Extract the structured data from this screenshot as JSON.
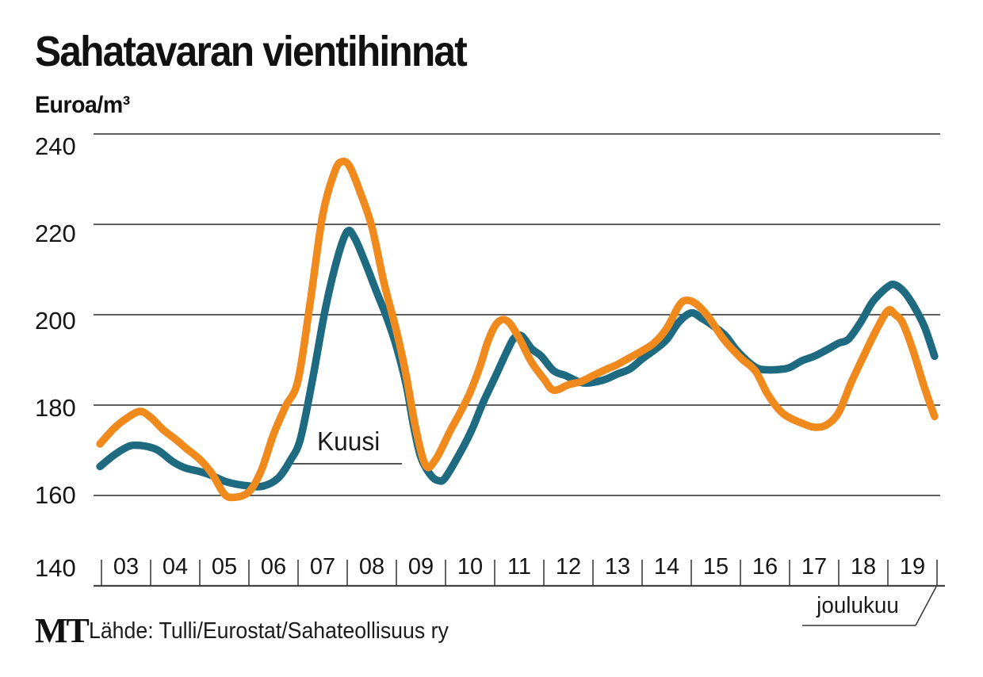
{
  "title": "Sahatavaran vientihinnat",
  "y_axis_unit": "Euroa/m³",
  "annotations": {
    "kuusi_label": "Kuusi",
    "x_axis_note": "joulukuu"
  },
  "footer": {
    "logo": "MT",
    "source": "Lähde: Tulli/Eurostat/Sahateollisuus ry"
  },
  "colors": {
    "kuusi_line": "#1E6A80",
    "orange_line": "#F08A1D",
    "grid": "#2a2a2a",
    "axis": "#444444",
    "text": "#111111"
  },
  "chart_data": {
    "type": "line",
    "title": "Sahatavaran vientihinnat",
    "ylabel": "Euroa/m³",
    "ylim": [
      140,
      240
    ],
    "yticks": [
      240,
      220,
      200,
      180,
      160,
      140
    ],
    "xtick_labels": [
      "03",
      "04",
      "05",
      "06",
      "07",
      "08",
      "09",
      "10",
      "11",
      "12",
      "13",
      "14",
      "15",
      "16",
      "17",
      "18",
      "19"
    ],
    "x_range_years": [
      2003,
      2020
    ],
    "x_end_note": "joulukuu",
    "grid": "horizontal",
    "legend_position": "inline-annotation",
    "series": [
      {
        "name": "Kuusi",
        "color": "#1E6A80",
        "points": [
          [
            2002.97,
            166.4
          ],
          [
            2003.25,
            168.9
          ],
          [
            2003.5,
            170.6
          ],
          [
            2003.65,
            171.1
          ],
          [
            2003.9,
            170.9
          ],
          [
            2004.15,
            170.0
          ],
          [
            2004.45,
            167.5
          ],
          [
            2004.7,
            166.1
          ],
          [
            2005.0,
            165.3
          ],
          [
            2005.25,
            164.4
          ],
          [
            2005.55,
            163.0
          ],
          [
            2006.0,
            162.1
          ],
          [
            2006.3,
            162.1
          ],
          [
            2006.6,
            163.9
          ],
          [
            2006.85,
            167.9
          ],
          [
            2007.05,
            172.6
          ],
          [
            2007.3,
            186.0
          ],
          [
            2007.55,
            201.0
          ],
          [
            2007.8,
            212.5
          ],
          [
            2008.0,
            218.4
          ],
          [
            2008.15,
            217.0
          ],
          [
            2008.35,
            212.0
          ],
          [
            2008.6,
            205.0
          ],
          [
            2008.8,
            199.5
          ],
          [
            2009.0,
            193.0
          ],
          [
            2009.2,
            184.5
          ],
          [
            2009.35,
            175.4
          ],
          [
            2009.5,
            168.4
          ],
          [
            2009.7,
            164.5
          ],
          [
            2009.85,
            163.3
          ],
          [
            2010.0,
            164.0
          ],
          [
            2010.35,
            170.5
          ],
          [
            2010.55,
            174.9
          ],
          [
            2010.75,
            180.2
          ],
          [
            2011.0,
            186.0
          ],
          [
            2011.25,
            191.9
          ],
          [
            2011.4,
            194.9
          ],
          [
            2011.55,
            195.3
          ],
          [
            2011.75,
            192.5
          ],
          [
            2011.95,
            190.8
          ],
          [
            2012.2,
            187.6
          ],
          [
            2012.45,
            186.5
          ],
          [
            2012.8,
            184.9
          ],
          [
            2013.2,
            185.5
          ],
          [
            2013.5,
            186.9
          ],
          [
            2013.75,
            188.0
          ],
          [
            2014.0,
            190.2
          ],
          [
            2014.25,
            192.2
          ],
          [
            2014.5,
            194.5
          ],
          [
            2014.75,
            198.4
          ],
          [
            2015.0,
            200.4
          ],
          [
            2015.2,
            199.3
          ],
          [
            2015.45,
            197.5
          ],
          [
            2015.7,
            195.3
          ],
          [
            2015.95,
            191.8
          ],
          [
            2016.3,
            188.4
          ],
          [
            2016.55,
            187.8
          ],
          [
            2016.8,
            187.9
          ],
          [
            2017.0,
            188.3
          ],
          [
            2017.25,
            189.8
          ],
          [
            2017.5,
            190.8
          ],
          [
            2017.75,
            192.2
          ],
          [
            2018.0,
            193.7
          ],
          [
            2018.2,
            194.6
          ],
          [
            2018.45,
            198.4
          ],
          [
            2018.7,
            203.0
          ],
          [
            2019.0,
            206.2
          ],
          [
            2019.15,
            206.6
          ],
          [
            2019.35,
            204.8
          ],
          [
            2019.55,
            201.5
          ],
          [
            2019.75,
            197.2
          ],
          [
            2019.95,
            190.8
          ]
        ]
      },
      {
        "name": "",
        "color": "#F08A1D",
        "points": [
          [
            2002.97,
            171.4
          ],
          [
            2003.25,
            174.8
          ],
          [
            2003.5,
            177.0
          ],
          [
            2003.78,
            178.6
          ],
          [
            2004.0,
            177.3
          ],
          [
            2004.25,
            174.6
          ],
          [
            2004.5,
            172.5
          ],
          [
            2004.75,
            170.2
          ],
          [
            2005.0,
            168.0
          ],
          [
            2005.25,
            164.8
          ],
          [
            2005.5,
            160.3
          ],
          [
            2005.7,
            159.6
          ],
          [
            2006.0,
            160.8
          ],
          [
            2006.25,
            165.5
          ],
          [
            2006.5,
            173.5
          ],
          [
            2006.75,
            179.8
          ],
          [
            2007.0,
            185.5
          ],
          [
            2007.25,
            203.0
          ],
          [
            2007.5,
            222.0
          ],
          [
            2007.75,
            231.8
          ],
          [
            2007.9,
            233.9
          ],
          [
            2008.05,
            232.8
          ],
          [
            2008.25,
            227.5
          ],
          [
            2008.5,
            219.5
          ],
          [
            2008.75,
            207.0
          ],
          [
            2009.0,
            196.5
          ],
          [
            2009.2,
            186.5
          ],
          [
            2009.4,
            174.5
          ],
          [
            2009.6,
            166.6
          ],
          [
            2009.8,
            168.0
          ],
          [
            2010.1,
            174.4
          ],
          [
            2010.3,
            178.4
          ],
          [
            2010.5,
            182.8
          ],
          [
            2010.7,
            188.5
          ],
          [
            2010.85,
            193.7
          ],
          [
            2011.0,
            197.4
          ],
          [
            2011.15,
            198.9
          ],
          [
            2011.3,
            198.2
          ],
          [
            2011.5,
            194.8
          ],
          [
            2011.75,
            189.5
          ],
          [
            2012.0,
            185.8
          ],
          [
            2012.2,
            183.3
          ],
          [
            2012.5,
            184.5
          ],
          [
            2012.75,
            185.2
          ],
          [
            2013.0,
            186.5
          ],
          [
            2013.25,
            187.8
          ],
          [
            2013.5,
            189.0
          ],
          [
            2013.75,
            190.5
          ],
          [
            2014.0,
            192.0
          ],
          [
            2014.25,
            193.8
          ],
          [
            2014.5,
            197.0
          ],
          [
            2014.75,
            202.0
          ],
          [
            2014.9,
            203.2
          ],
          [
            2015.1,
            202.4
          ],
          [
            2015.35,
            199.5
          ],
          [
            2015.65,
            194.7
          ],
          [
            2016.0,
            190.5
          ],
          [
            2016.3,
            187.6
          ],
          [
            2016.55,
            182.5
          ],
          [
            2016.8,
            178.8
          ],
          [
            2017.0,
            177.2
          ],
          [
            2017.25,
            176.0
          ],
          [
            2017.5,
            175.1
          ],
          [
            2017.75,
            175.6
          ],
          [
            2018.0,
            178.4
          ],
          [
            2018.25,
            184.9
          ],
          [
            2018.5,
            190.7
          ],
          [
            2018.75,
            196.3
          ],
          [
            2019.0,
            200.9
          ],
          [
            2019.15,
            200.0
          ],
          [
            2019.3,
            198.2
          ],
          [
            2019.5,
            192.5
          ],
          [
            2019.75,
            183.7
          ],
          [
            2019.95,
            177.5
          ]
        ]
      }
    ]
  }
}
